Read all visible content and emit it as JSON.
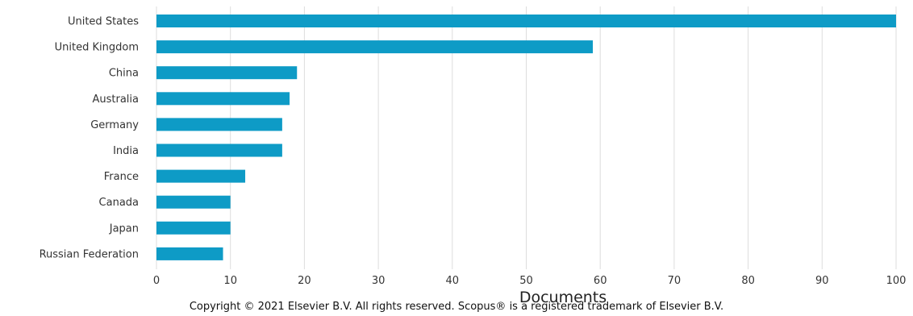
{
  "chart_data": {
    "type": "bar",
    "orientation": "horizontal",
    "categories": [
      "United States",
      "United Kingdom",
      "China",
      "Australia",
      "Germany",
      "India",
      "France",
      "Canada",
      "Japan",
      "Russian Federation"
    ],
    "values": [
      100,
      59,
      19,
      18,
      17,
      17,
      12,
      10,
      10,
      9
    ],
    "xlabel": "Documents",
    "ylabel": "",
    "xlim": [
      0,
      100
    ],
    "xticks": [
      0,
      10,
      20,
      30,
      40,
      50,
      60,
      70,
      80,
      90,
      100
    ],
    "grid": "vertical",
    "bar_color": "#0e9bc6"
  },
  "footer": {
    "copyright": "Copyright © 2021 Elsevier B.V. All rights reserved. Scopus® is a registered trademark of Elsevier B.V."
  }
}
